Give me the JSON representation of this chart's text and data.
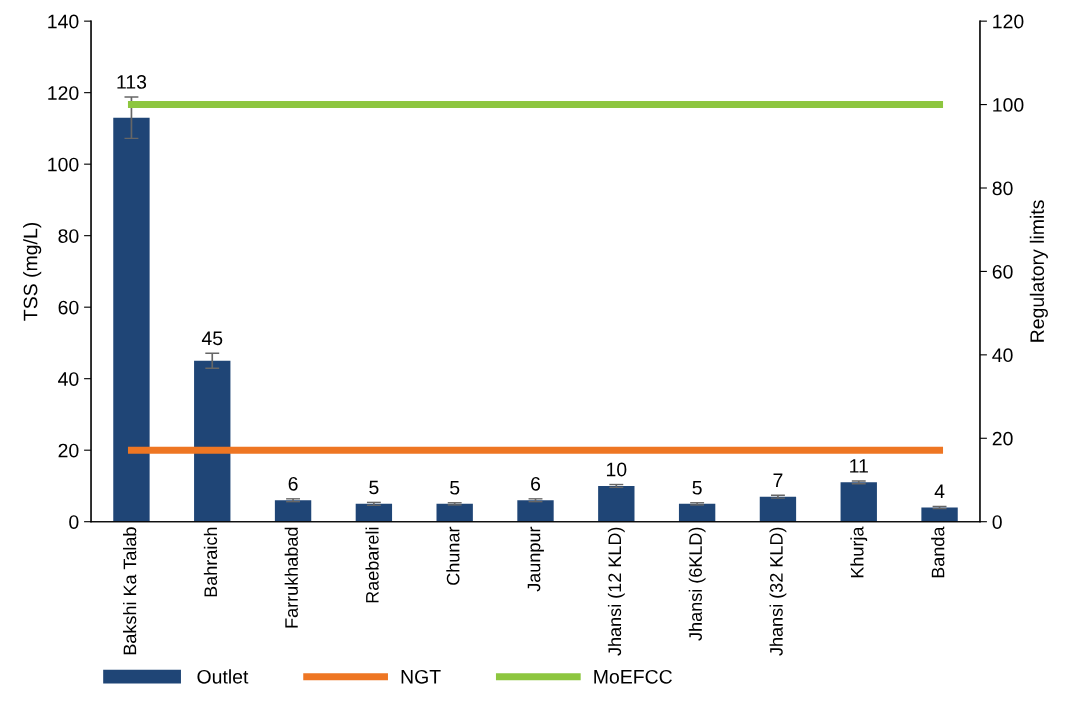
{
  "chart_data": {
    "type": "bar",
    "ylabel": "TSS (mg/L)",
    "y2label": "Regulatory limits",
    "categories": [
      "Bakshi Ka Talab",
      "Bahraich",
      "Farrukhabad",
      "Raebareli",
      "Chunar",
      "Jaunpur",
      "Jhansi (12 KLD)",
      "Jhansi (6KLD)",
      "Jhansi (32 KLD)",
      "Khurja",
      "Banda"
    ],
    "series": [
      {
        "name": "Outlet",
        "color": "#1f4576",
        "values": [
          113,
          45,
          6,
          5,
          5,
          6,
          10,
          5,
          7,
          11,
          4
        ],
        "value_labels": [
          "113",
          "45",
          "6",
          "5",
          "5",
          "6",
          "10",
          "5",
          "7",
          "11",
          "4"
        ],
        "errors": [
          5.8,
          2.1,
          0.4,
          0.4,
          0.3,
          0.4,
          0.4,
          0.3,
          0.4,
          0.4,
          0.3
        ]
      },
      {
        "name": "NGT",
        "type": "line",
        "color": "#ee7623",
        "values": [
          20,
          20,
          20,
          20,
          20,
          20,
          20,
          20,
          20,
          20,
          20
        ]
      },
      {
        "name": "MoEFCC",
        "type": "line",
        "axis": "y2",
        "color": "#8dc63f",
        "values": [
          100,
          100,
          100,
          100,
          100,
          100,
          100,
          100,
          100,
          100,
          100
        ]
      }
    ],
    "ylim": [
      0,
      140
    ],
    "yticks": [
      0,
      20,
      40,
      60,
      80,
      100,
      120,
      140
    ],
    "y2lim": [
      0,
      120
    ],
    "y2ticks": [
      0,
      20,
      40,
      60,
      80,
      100,
      120
    ],
    "grid": false,
    "legend": "bottom",
    "marker": "none",
    "line_style": "solid"
  }
}
